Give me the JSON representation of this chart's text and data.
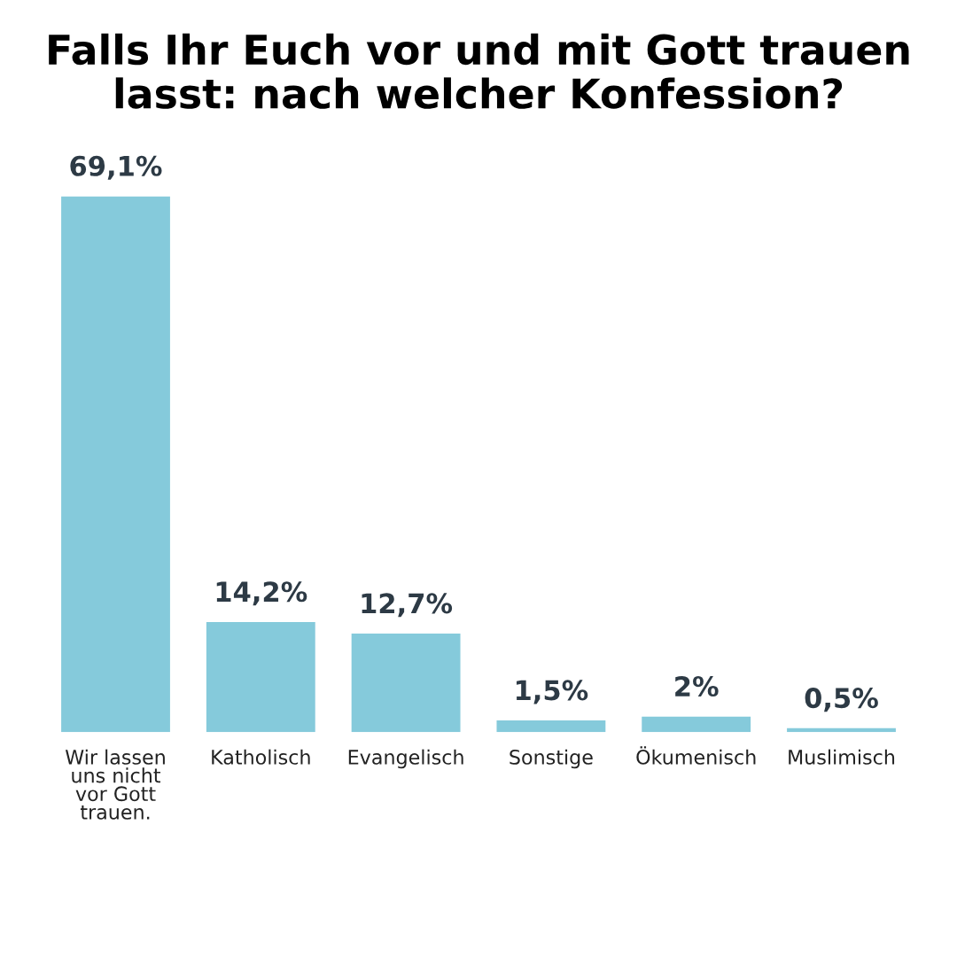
{
  "chart_data": {
    "type": "bar",
    "title": "Falls Ihr Euch vor und mit Gott trauen\nlasst: nach welcher Konfession?",
    "categories": [
      "Wir lassen\nuns nicht\nvor Gott\ntrauen.",
      "Katholisch",
      "Evangelisch",
      "Sonstige",
      "Ökumenisch",
      "Muslimisch"
    ],
    "values": [
      69.1,
      14.2,
      12.7,
      1.5,
      2,
      0.5
    ],
    "value_labels": [
      "69,1%",
      "14,2%",
      "12,7%",
      "1,5%",
      "2%",
      "0,5%"
    ],
    "color": "#85cadb",
    "grid": false,
    "legend": false
  }
}
